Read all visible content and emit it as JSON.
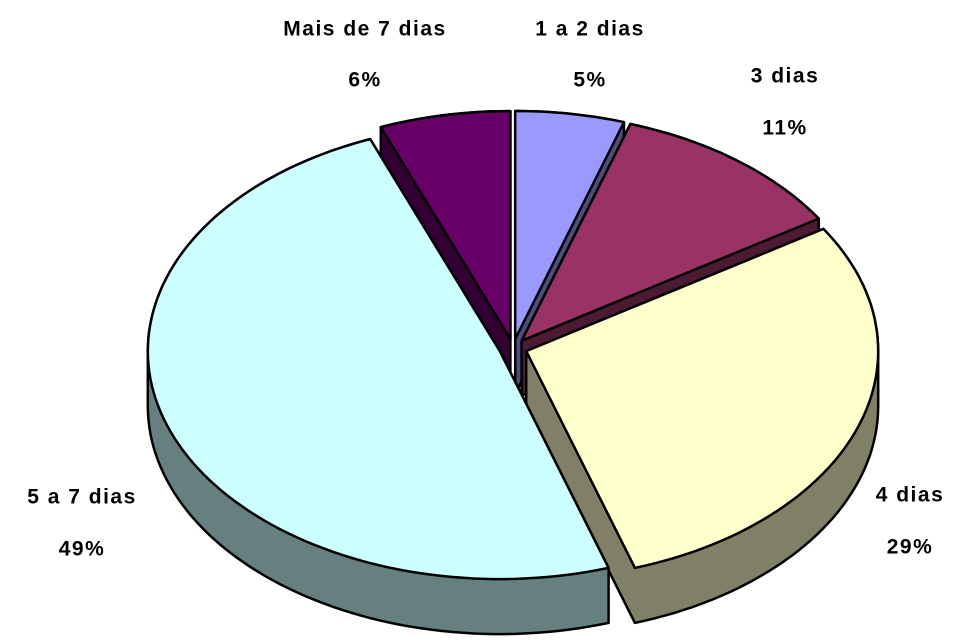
{
  "chart_data": {
    "type": "pie",
    "categories": [
      "1 a 2 dias",
      "3 dias",
      "4 dias",
      "5 a 7 dias",
      "Mais de 7 dias"
    ],
    "values": [
      5,
      11,
      29,
      49,
      6
    ],
    "value_labels": [
      "5%",
      "11%",
      "29%",
      "49%",
      "6%"
    ],
    "colors": [
      "#9999ff",
      "#993366",
      "#ffffcc",
      "#ccffff",
      "#660066"
    ]
  }
}
